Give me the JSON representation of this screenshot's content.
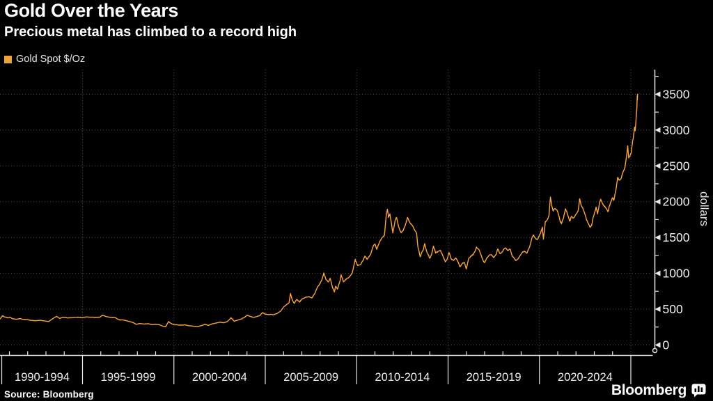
{
  "header": {
    "title": "Gold Over the Years",
    "subtitle": "Precious metal has climbed to a record high"
  },
  "legend": {
    "swatch_color": "#EDA23C"
  },
  "footer": {
    "source": "Source: Bloomberg",
    "brand": "Bloomberg"
  },
  "colors": {
    "background": "#000000",
    "line": "#FCA53A",
    "axis": "#E9E9E9",
    "grid": "#525252",
    "tick_label": "#F2F2F2",
    "axis_title": "#E6E6E6",
    "group_label": "#EFEFEF"
  },
  "chart_data": {
    "type": "line",
    "title": "Gold Over the Years",
    "subtitle": "Precious metal has climbed to a record high",
    "ylabel": "dollars",
    "xlabel": "",
    "ylim": [
      0,
      3750
    ],
    "y_ticks": [
      0,
      500,
      1000,
      1500,
      2000,
      2500,
      3000,
      3500
    ],
    "y_minor_tick_step": 250,
    "grid": "dotted",
    "legend_position": "top-left",
    "x_group_labels": [
      "1990-1994",
      "1995-1999",
      "2000-2004",
      "2005-2009",
      "2010-2014",
      "2015-2019",
      "2020-2024"
    ],
    "x_separator_years": [
      1995,
      2000,
      2005,
      2010,
      2015,
      2020,
      2025
    ],
    "x_range": [
      1990.5,
      2025.37
    ],
    "record_high": 3500,
    "series": [
      {
        "name": "Gold Spot $/Oz",
        "color": "#FCA53A",
        "points": [
          [
            1990.5,
            365
          ],
          [
            1990.62,
            408
          ],
          [
            1990.75,
            390
          ],
          [
            1990.9,
            378
          ],
          [
            1991.05,
            383
          ],
          [
            1991.2,
            363
          ],
          [
            1991.4,
            360
          ],
          [
            1991.6,
            368
          ],
          [
            1991.8,
            355
          ],
          [
            1992.0,
            354
          ],
          [
            1992.2,
            343
          ],
          [
            1992.45,
            338
          ],
          [
            1992.7,
            345
          ],
          [
            1992.95,
            333
          ],
          [
            1993.15,
            328
          ],
          [
            1993.4,
            372
          ],
          [
            1993.58,
            400
          ],
          [
            1993.75,
            370
          ],
          [
            1993.95,
            388
          ],
          [
            1994.2,
            377
          ],
          [
            1994.45,
            382
          ],
          [
            1994.7,
            388
          ],
          [
            1994.95,
            379
          ],
          [
            1995.2,
            392
          ],
          [
            1995.45,
            387
          ],
          [
            1995.7,
            384
          ],
          [
            1995.95,
            388
          ],
          [
            1996.1,
            415
          ],
          [
            1996.3,
            396
          ],
          [
            1996.55,
            385
          ],
          [
            1996.8,
            380
          ],
          [
            1997.0,
            352
          ],
          [
            1997.25,
            348
          ],
          [
            1997.5,
            332
          ],
          [
            1997.75,
            315
          ],
          [
            1997.95,
            288
          ],
          [
            1998.15,
            300
          ],
          [
            1998.35,
            293
          ],
          [
            1998.6,
            296
          ],
          [
            1998.8,
            284
          ],
          [
            1999.0,
            288
          ],
          [
            1999.25,
            279
          ],
          [
            1999.42,
            260
          ],
          [
            1999.55,
            253
          ],
          [
            1999.7,
            326
          ],
          [
            1999.85,
            299
          ],
          [
            2000.0,
            284
          ],
          [
            2000.2,
            280
          ],
          [
            2000.4,
            276
          ],
          [
            2000.6,
            281
          ],
          [
            2000.8,
            269
          ],
          [
            2001.0,
            264
          ],
          [
            2001.15,
            260
          ],
          [
            2001.3,
            256
          ],
          [
            2001.5,
            270
          ],
          [
            2001.7,
            287
          ],
          [
            2001.9,
            274
          ],
          [
            2002.1,
            295
          ],
          [
            2002.3,
            305
          ],
          [
            2002.5,
            318
          ],
          [
            2002.7,
            310
          ],
          [
            2002.9,
            323
          ],
          [
            2003.05,
            356
          ],
          [
            2003.12,
            380
          ],
          [
            2003.3,
            330
          ],
          [
            2003.5,
            348
          ],
          [
            2003.7,
            363
          ],
          [
            2003.9,
            392
          ],
          [
            2004.0,
            416
          ],
          [
            2004.15,
            400
          ],
          [
            2004.35,
            385
          ],
          [
            2004.55,
            398
          ],
          [
            2004.7,
            410
          ],
          [
            2004.85,
            452
          ],
          [
            2005.0,
            430
          ],
          [
            2005.2,
            426
          ],
          [
            2005.45,
            422
          ],
          [
            2005.65,
            440
          ],
          [
            2005.85,
            475
          ],
          [
            2006.0,
            530
          ],
          [
            2006.15,
            560
          ],
          [
            2006.3,
            590
          ],
          [
            2006.38,
            718
          ],
          [
            2006.48,
            625
          ],
          [
            2006.58,
            580
          ],
          [
            2006.72,
            635
          ],
          [
            2006.88,
            600
          ],
          [
            2007.0,
            640
          ],
          [
            2007.2,
            665
          ],
          [
            2007.4,
            675
          ],
          [
            2007.55,
            655
          ],
          [
            2007.7,
            715
          ],
          [
            2007.85,
            805
          ],
          [
            2008.0,
            860
          ],
          [
            2008.12,
            925
          ],
          [
            2008.2,
            1005
          ],
          [
            2008.32,
            915
          ],
          [
            2008.45,
            880
          ],
          [
            2008.55,
            930
          ],
          [
            2008.68,
            800
          ],
          [
            2008.78,
            740
          ],
          [
            2008.85,
            820
          ],
          [
            2008.95,
            780
          ],
          [
            2009.1,
            905
          ],
          [
            2009.15,
            980
          ],
          [
            2009.28,
            880
          ],
          [
            2009.45,
            925
          ],
          [
            2009.6,
            950
          ],
          [
            2009.75,
            1000
          ],
          [
            2009.92,
            1195
          ],
          [
            2010.05,
            1110
          ],
          [
            2010.2,
            1120
          ],
          [
            2010.35,
            1180
          ],
          [
            2010.45,
            1240
          ],
          [
            2010.58,
            1195
          ],
          [
            2010.75,
            1260
          ],
          [
            2010.9,
            1375
          ],
          [
            2011.0,
            1410
          ],
          [
            2011.1,
            1335
          ],
          [
            2011.25,
            1440
          ],
          [
            2011.4,
            1500
          ],
          [
            2011.52,
            1530
          ],
          [
            2011.62,
            1820
          ],
          [
            2011.68,
            1895
          ],
          [
            2011.74,
            1780
          ],
          [
            2011.82,
            1830
          ],
          [
            2011.9,
            1700
          ],
          [
            2011.98,
            1565
          ],
          [
            2012.1,
            1735
          ],
          [
            2012.18,
            1780
          ],
          [
            2012.3,
            1650
          ],
          [
            2012.42,
            1570
          ],
          [
            2012.55,
            1600
          ],
          [
            2012.68,
            1690
          ],
          [
            2012.78,
            1780
          ],
          [
            2012.92,
            1705
          ],
          [
            2013.05,
            1665
          ],
          [
            2013.2,
            1590
          ],
          [
            2013.28,
            1560
          ],
          [
            2013.35,
            1370
          ],
          [
            2013.48,
            1230
          ],
          [
            2013.55,
            1285
          ],
          [
            2013.65,
            1330
          ],
          [
            2013.72,
            1415
          ],
          [
            2013.85,
            1290
          ],
          [
            2014.0,
            1210
          ],
          [
            2014.1,
            1265
          ],
          [
            2014.2,
            1380
          ],
          [
            2014.32,
            1285
          ],
          [
            2014.45,
            1305
          ],
          [
            2014.58,
            1320
          ],
          [
            2014.72,
            1240
          ],
          [
            2014.85,
            1160
          ],
          [
            2014.95,
            1195
          ],
          [
            2015.05,
            1290
          ],
          [
            2015.18,
            1200
          ],
          [
            2015.3,
            1180
          ],
          [
            2015.42,
            1215
          ],
          [
            2015.55,
            1160
          ],
          [
            2015.65,
            1090
          ],
          [
            2015.78,
            1135
          ],
          [
            2015.88,
            1155
          ],
          [
            2016.0,
            1062
          ],
          [
            2016.12,
            1200
          ],
          [
            2016.25,
            1240
          ],
          [
            2016.38,
            1260
          ],
          [
            2016.5,
            1320
          ],
          [
            2016.56,
            1366
          ],
          [
            2016.68,
            1335
          ],
          [
            2016.8,
            1260
          ],
          [
            2016.92,
            1175
          ],
          [
            2017.0,
            1150
          ],
          [
            2017.12,
            1215
          ],
          [
            2017.25,
            1250
          ],
          [
            2017.38,
            1258
          ],
          [
            2017.5,
            1220
          ],
          [
            2017.62,
            1260
          ],
          [
            2017.72,
            1340
          ],
          [
            2017.85,
            1275
          ],
          [
            2017.95,
            1295
          ],
          [
            2018.05,
            1340
          ],
          [
            2018.12,
            1355
          ],
          [
            2018.25,
            1320
          ],
          [
            2018.38,
            1340
          ],
          [
            2018.5,
            1250
          ],
          [
            2018.62,
            1210
          ],
          [
            2018.7,
            1178
          ],
          [
            2018.82,
            1200
          ],
          [
            2018.95,
            1250
          ],
          [
            2019.05,
            1288
          ],
          [
            2019.18,
            1310
          ],
          [
            2019.3,
            1280
          ],
          [
            2019.42,
            1345
          ],
          [
            2019.52,
            1420
          ],
          [
            2019.6,
            1500
          ],
          [
            2019.68,
            1535
          ],
          [
            2019.78,
            1485
          ],
          [
            2019.88,
            1470
          ],
          [
            2019.98,
            1520
          ],
          [
            2020.08,
            1575
          ],
          [
            2020.16,
            1645
          ],
          [
            2020.22,
            1475
          ],
          [
            2020.32,
            1715
          ],
          [
            2020.42,
            1745
          ],
          [
            2020.52,
            1805
          ],
          [
            2020.6,
            2065
          ],
          [
            2020.68,
            1935
          ],
          [
            2020.75,
            1870
          ],
          [
            2020.85,
            1905
          ],
          [
            2020.95,
            1885
          ],
          [
            2021.02,
            1845
          ],
          [
            2021.12,
            1740
          ],
          [
            2021.2,
            1690
          ],
          [
            2021.32,
            1775
          ],
          [
            2021.42,
            1900
          ],
          [
            2021.5,
            1860
          ],
          [
            2021.58,
            1790
          ],
          [
            2021.65,
            1730
          ],
          [
            2021.75,
            1795
          ],
          [
            2021.85,
            1770
          ],
          [
            2021.95,
            1805
          ],
          [
            2022.05,
            1840
          ],
          [
            2022.12,
            1870
          ],
          [
            2022.2,
            2040
          ],
          [
            2022.28,
            1950
          ],
          [
            2022.38,
            1905
          ],
          [
            2022.48,
            1830
          ],
          [
            2022.58,
            1740
          ],
          [
            2022.68,
            1695
          ],
          [
            2022.78,
            1640
          ],
          [
            2022.85,
            1665
          ],
          [
            2022.95,
            1790
          ],
          [
            2023.05,
            1870
          ],
          [
            2023.1,
            1925
          ],
          [
            2023.18,
            1830
          ],
          [
            2023.28,
            1975
          ],
          [
            2023.35,
            2035
          ],
          [
            2023.45,
            1975
          ],
          [
            2023.55,
            1935
          ],
          [
            2023.65,
            1910
          ],
          [
            2023.75,
            1860
          ],
          [
            2023.82,
            1935
          ],
          [
            2023.9,
            1995
          ],
          [
            2024.0,
            2055
          ],
          [
            2024.08,
            2025
          ],
          [
            2024.18,
            2160
          ],
          [
            2024.28,
            2340
          ],
          [
            2024.38,
            2300
          ],
          [
            2024.48,
            2330
          ],
          [
            2024.58,
            2420
          ],
          [
            2024.68,
            2480
          ],
          [
            2024.78,
            2660
          ],
          [
            2024.83,
            2780
          ],
          [
            2024.88,
            2610
          ],
          [
            2024.95,
            2640
          ],
          [
            2025.02,
            2680
          ],
          [
            2025.1,
            2850
          ],
          [
            2025.15,
            2920
          ],
          [
            2025.2,
            3040
          ],
          [
            2025.24,
            2990
          ],
          [
            2025.28,
            3120
          ],
          [
            2025.31,
            3240
          ],
          [
            2025.33,
            3320
          ],
          [
            2025.35,
            3480
          ],
          [
            2025.36,
            3420
          ],
          [
            2025.37,
            3500
          ]
        ]
      }
    ]
  }
}
